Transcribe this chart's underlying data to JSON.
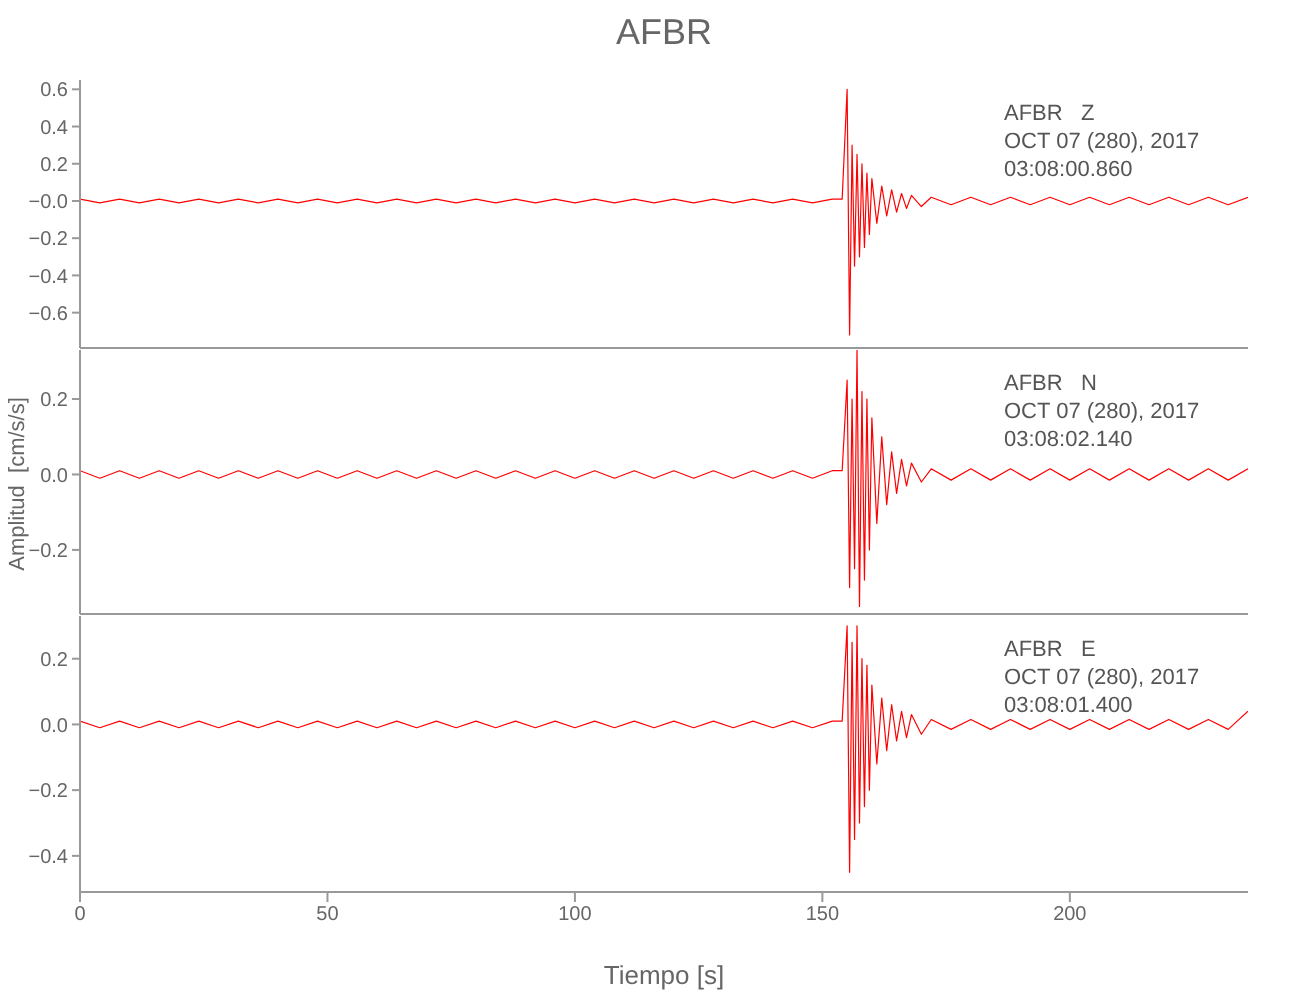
{
  "chart_data": [
    {
      "type": "line",
      "title": "AFBR",
      "tick_labels": "y",
      "annotations": [
        "AFBR   Z",
        "OCT 07 (280), 2017",
        "03:08:00.860"
      ],
      "x": [
        0,
        4,
        8,
        12,
        16,
        20,
        24,
        28,
        32,
        36,
        40,
        44,
        48,
        52,
        56,
        60,
        64,
        68,
        72,
        76,
        80,
        84,
        88,
        92,
        96,
        100,
        104,
        108,
        112,
        116,
        120,
        124,
        128,
        132,
        136,
        140,
        144,
        148,
        152,
        154,
        155,
        155.5,
        156,
        156.5,
        157,
        157.5,
        158,
        158.5,
        159,
        159.5,
        160,
        161,
        162,
        163,
        164,
        165,
        166,
        167,
        168,
        170,
        172,
        176,
        180,
        184,
        188,
        192,
        196,
        200,
        204,
        208,
        212,
        216,
        220,
        224,
        228,
        232,
        236
      ],
      "series": [
        {
          "color": "#ff0000",
          "values": [
            0.01,
            -0.01,
            0.01,
            -0.01,
            0.01,
            -0.01,
            0.01,
            -0.01,
            0.01,
            -0.01,
            0.01,
            -0.01,
            0.01,
            -0.01,
            0.01,
            -0.01,
            0.01,
            -0.01,
            0.01,
            -0.01,
            0.01,
            -0.01,
            0.01,
            -0.01,
            0.01,
            -0.01,
            0.01,
            -0.01,
            0.01,
            -0.01,
            0.01,
            -0.01,
            0.01,
            -0.01,
            0.01,
            -0.01,
            0.01,
            -0.01,
            0.01,
            0.01,
            0.6,
            -0.72,
            0.3,
            -0.35,
            0.25,
            -0.3,
            0.2,
            -0.25,
            0.15,
            -0.18,
            0.12,
            -0.12,
            0.08,
            -0.08,
            0.06,
            -0.06,
            0.04,
            -0.04,
            0.03,
            -0.03,
            0.02,
            -0.02,
            0.02,
            -0.02,
            0.02,
            -0.02,
            0.02,
            -0.02,
            0.02,
            -0.02,
            0.02,
            -0.02,
            0.02,
            -0.02,
            0.02,
            -0.02,
            0.02
          ]
        }
      ],
      "xlim": [
        0,
        236
      ],
      "xticks": [
        0,
        50,
        100,
        150,
        200
      ],
      "ylim": [
        -0.79,
        0.65
      ],
      "yticks": [
        {
          "value": -0.6,
          "label": "−0.6"
        },
        {
          "value": -0.4,
          "label": "−0.4"
        },
        {
          "value": -0.2,
          "label": "−0.2"
        },
        {
          "value": 0,
          "label": "−0.0"
        },
        {
          "value": 0.2,
          "label": "0.2"
        },
        {
          "value": 0.4,
          "label": "0.4"
        },
        {
          "value": 0.6,
          "label": "0.6"
        }
      ]
    },
    {
      "type": "line",
      "ylabel": "Amplitud  [cm/s/s]",
      "tick_labels": "y",
      "annotations": [
        "AFBR   N",
        "OCT 07 (280), 2017",
        "03:08:02.140"
      ],
      "x": [
        0,
        4,
        8,
        12,
        16,
        20,
        24,
        28,
        32,
        36,
        40,
        44,
        48,
        52,
        56,
        60,
        64,
        68,
        72,
        76,
        80,
        84,
        88,
        92,
        96,
        100,
        104,
        108,
        112,
        116,
        120,
        124,
        128,
        132,
        136,
        140,
        144,
        148,
        152,
        154,
        155,
        155.5,
        156,
        156.5,
        157,
        157.5,
        158,
        158.5,
        159,
        159.5,
        160,
        161,
        162,
        163,
        164,
        165,
        166,
        167,
        168,
        170,
        172,
        176,
        180,
        184,
        188,
        192,
        196,
        200,
        204,
        208,
        212,
        216,
        220,
        224,
        228,
        232,
        236
      ],
      "series": [
        {
          "color": "#ff0000",
          "values": [
            0.01,
            -0.01,
            0.01,
            -0.01,
            0.01,
            -0.01,
            0.01,
            -0.01,
            0.01,
            -0.01,
            0.01,
            -0.01,
            0.01,
            -0.01,
            0.01,
            -0.01,
            0.01,
            -0.01,
            0.01,
            -0.01,
            0.01,
            -0.01,
            0.01,
            -0.01,
            0.01,
            -0.01,
            0.01,
            -0.01,
            0.01,
            -0.01,
            0.01,
            -0.01,
            0.01,
            -0.01,
            0.01,
            -0.01,
            0.01,
            -0.01,
            0.01,
            0.01,
            0.25,
            -0.3,
            0.2,
            -0.25,
            0.33,
            -0.35,
            0.22,
            -0.28,
            0.2,
            -0.2,
            0.15,
            -0.13,
            0.1,
            -0.08,
            0.06,
            -0.05,
            0.04,
            -0.03,
            0.03,
            -0.02,
            0.015,
            -0.015,
            0.015,
            -0.015,
            0.015,
            -0.015,
            0.015,
            -0.015,
            0.015,
            -0.015,
            0.015,
            -0.015,
            0.015,
            -0.015,
            0.015,
            -0.015,
            0.015
          ]
        }
      ],
      "xlim": [
        0,
        236
      ],
      "xticks": [
        0,
        50,
        100,
        150,
        200
      ],
      "ylim": [
        -0.37,
        0.33
      ],
      "yticks": [
        {
          "value": -0.2,
          "label": "−0.2"
        },
        {
          "value": 0,
          "label": "0.0"
        },
        {
          "value": 0.2,
          "label": "0.2"
        }
      ]
    },
    {
      "type": "line",
      "xlabel": "Tiempo  [s]",
      "annotations": [
        "AFBR   E",
        "OCT 07 (280), 2017",
        "03:08:01.400"
      ],
      "x": [
        0,
        4,
        8,
        12,
        16,
        20,
        24,
        28,
        32,
        36,
        40,
        44,
        48,
        52,
        56,
        60,
        64,
        68,
        72,
        76,
        80,
        84,
        88,
        92,
        96,
        100,
        104,
        108,
        112,
        116,
        120,
        124,
        128,
        132,
        136,
        140,
        144,
        148,
        152,
        154,
        155,
        155.5,
        156,
        156.5,
        157,
        157.5,
        158,
        158.5,
        159,
        159.5,
        160,
        161,
        162,
        163,
        164,
        165,
        166,
        167,
        168,
        170,
        172,
        176,
        180,
        184,
        188,
        192,
        196,
        200,
        204,
        208,
        212,
        216,
        220,
        224,
        228,
        232,
        236
      ],
      "series": [
        {
          "color": "#ff0000",
          "values": [
            0.01,
            -0.01,
            0.01,
            -0.01,
            0.01,
            -0.01,
            0.01,
            -0.01,
            0.01,
            -0.01,
            0.01,
            -0.01,
            0.01,
            -0.01,
            0.01,
            -0.01,
            0.01,
            -0.01,
            0.01,
            -0.01,
            0.01,
            -0.01,
            0.01,
            -0.01,
            0.01,
            -0.01,
            0.01,
            -0.01,
            0.01,
            -0.01,
            0.01,
            -0.01,
            0.01,
            -0.01,
            0.01,
            -0.01,
            0.01,
            -0.01,
            0.01,
            0.01,
            0.3,
            -0.45,
            0.25,
            -0.35,
            0.3,
            -0.3,
            0.2,
            -0.25,
            0.18,
            -0.2,
            0.12,
            -0.12,
            0.08,
            -0.08,
            0.06,
            -0.05,
            0.04,
            -0.04,
            0.03,
            -0.03,
            0.015,
            -0.015,
            0.015,
            -0.015,
            0.015,
            -0.015,
            0.015,
            -0.015,
            0.015,
            -0.015,
            0.015,
            -0.015,
            0.015,
            -0.015,
            0.015,
            -0.015,
            0.04
          ]
        }
      ],
      "xlim": [
        0,
        236
      ],
      "xticks": [
        0,
        50,
        100,
        150,
        200
      ],
      "ylim": [
        -0.51,
        0.33
      ],
      "yticks": [
        {
          "value": -0.4,
          "label": "−0.4"
        },
        {
          "value": -0.2,
          "label": "−0.2"
        },
        {
          "value": 0,
          "label": "0.0"
        },
        {
          "value": 0.2,
          "label": "0.2"
        }
      ]
    }
  ]
}
